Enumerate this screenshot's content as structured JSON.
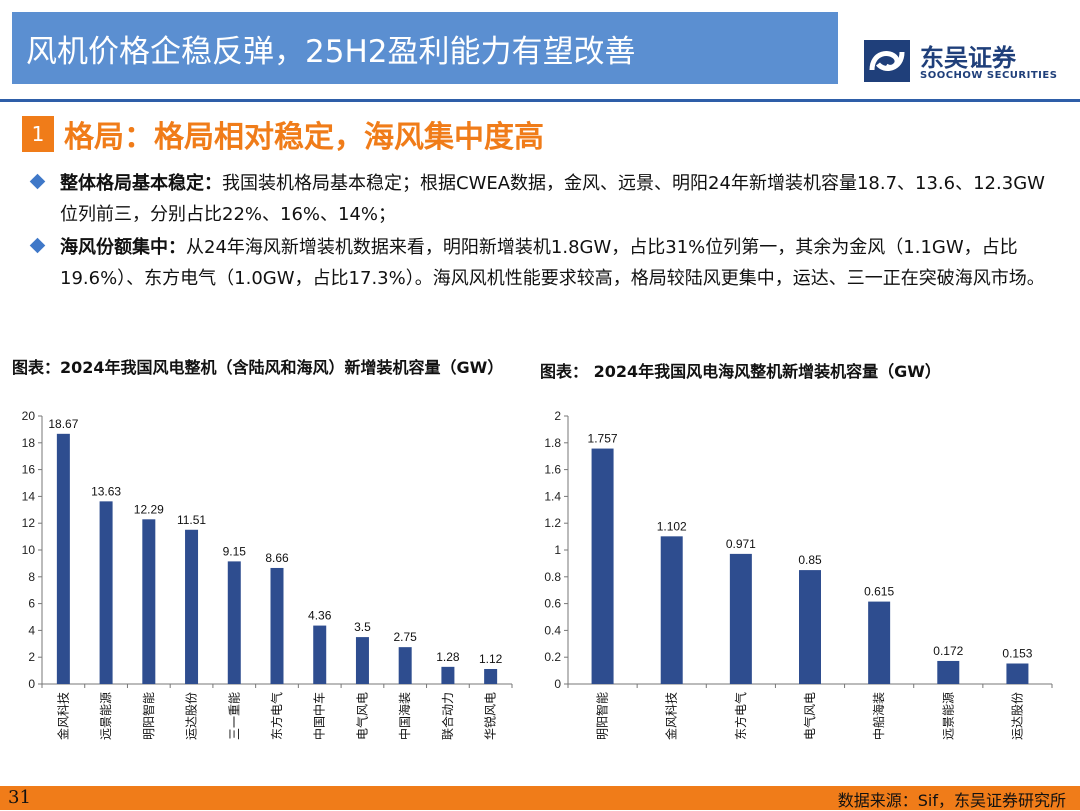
{
  "header": {
    "title": "风机价格企稳反弹，25H2盈利能力有望改善",
    "logo_cn": "东吴证券",
    "logo_en": "SOOCHOW SECURITIES"
  },
  "section": {
    "number": "1",
    "title": "格局：格局相对稳定，海风集中度高"
  },
  "bullets": [
    {
      "bold": "整体格局基本稳定：",
      "text": "我国装机格局基本稳定；根据CWEA数据，金风、远景、明阳24年新增装机容量18.7、13.6、12.3GW位列前三，分别占比22%、16%、14%；"
    },
    {
      "bold": "海风份额集中：",
      "text": "从24年海风新增装机数据来看，明阳新增装机1.8GW，占比31%位列第一，其余为金风（1.1GW，占比19.6%）、东方电气（1.0GW，占比17.3%）。海风风机性能要求较高，格局较陆风更集中，运达、三一正在突破海风市场。"
    }
  ],
  "chart_data": [
    {
      "type": "bar",
      "title": "图表：2024年我国风电整机（含陆风和海风）新增装机容量（GW）",
      "categories": [
        "金风科技",
        "远景能源",
        "明阳智能",
        "运达股份",
        "三一重能",
        "东方电气",
        "中国中车",
        "电气风电",
        "中国海装",
        "联合动力",
        "华锐风电"
      ],
      "values": [
        18.67,
        13.63,
        12.29,
        11.51,
        9.15,
        8.66,
        4.36,
        3.5,
        2.75,
        1.28,
        1.12
      ],
      "value_labels": [
        "18.67",
        "13.63",
        "12.29",
        "11.51",
        "9.15",
        "8.66",
        "4.36",
        "3.5",
        "2.75",
        "1.28",
        "1.12"
      ],
      "ylim": [
        0,
        20
      ],
      "yticks": [
        "0",
        "2",
        "4",
        "6",
        "8",
        "10",
        "12",
        "14",
        "16",
        "18",
        "20"
      ],
      "grid": false,
      "bar_color": "#2e4d8f"
    },
    {
      "type": "bar",
      "title": "图表： 2024年我国风电海风整机新增装机容量（GW）",
      "categories": [
        "明阳智能",
        "金风科技",
        "东方电气",
        "电气风电",
        "中船海装",
        "远景能源",
        "运达股份"
      ],
      "values": [
        1.757,
        1.102,
        0.971,
        0.85,
        0.615,
        0.172,
        0.153
      ],
      "value_labels": [
        "1.757",
        "1.102",
        "0.971",
        "0.85",
        "0.615",
        "0.172",
        "0.153"
      ],
      "ylim": [
        0,
        2
      ],
      "yticks": [
        "0",
        "0.2",
        "0.4",
        "0.6",
        "0.8",
        "1",
        "1.2",
        "1.4",
        "1.6",
        "1.8",
        "2"
      ],
      "grid": false,
      "bar_color": "#2e4d8f"
    }
  ],
  "footer": {
    "page": "31",
    "source": "数据来源：Sif，东吴证券研究所"
  },
  "colors": {
    "title_bar": "#5b8fd1",
    "accent": "#f07c19",
    "rule": "#2e5ea8",
    "bar": "#2e4d8f"
  }
}
